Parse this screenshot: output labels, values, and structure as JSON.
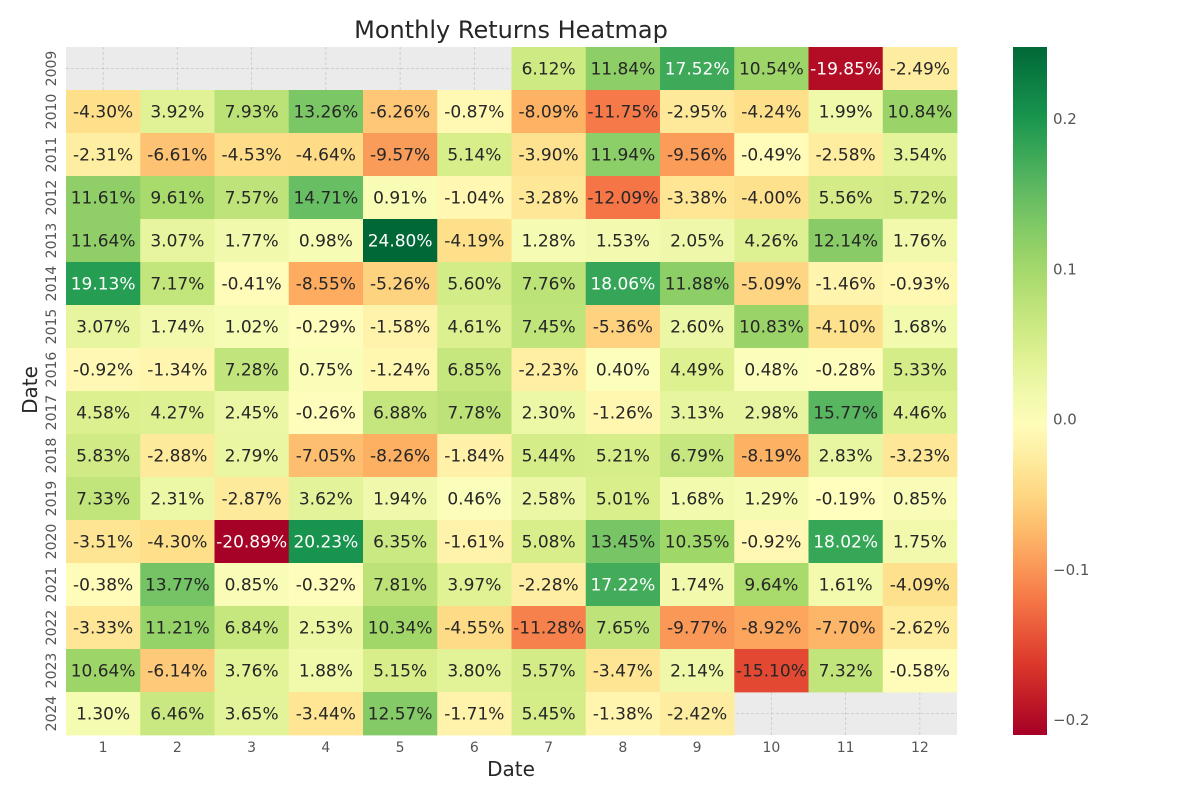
{
  "chart_data": {
    "type": "heatmap",
    "title": "Monthly Returns Heatmap",
    "xlabel": "Date",
    "ylabel": "Date",
    "x_categories": [
      "1",
      "2",
      "3",
      "4",
      "5",
      "6",
      "7",
      "8",
      "9",
      "10",
      "11",
      "12"
    ],
    "y_categories": [
      "2009",
      "2010",
      "2011",
      "2012",
      "2013",
      "2014",
      "2015",
      "2016",
      "2017",
      "2018",
      "2019",
      "2020",
      "2021",
      "2022",
      "2023",
      "2024"
    ],
    "values": [
      [
        null,
        null,
        null,
        null,
        null,
        null,
        0.0612,
        0.1184,
        0.1752,
        0.1054,
        -0.1985,
        -0.0249
      ],
      [
        -0.043,
        0.0392,
        0.0793,
        0.1326,
        -0.0626,
        -0.0087,
        -0.0809,
        -0.1175,
        -0.0295,
        -0.0424,
        0.0199,
        0.1084
      ],
      [
        -0.0231,
        -0.0661,
        -0.0453,
        -0.0464,
        -0.0957,
        0.0514,
        -0.039,
        0.1194,
        -0.0956,
        -0.0049,
        -0.0258,
        0.0354
      ],
      [
        0.1161,
        0.0961,
        0.0757,
        0.1471,
        0.0091,
        -0.0104,
        -0.0328,
        -0.1209,
        -0.0338,
        -0.04,
        0.0556,
        0.0572
      ],
      [
        0.1164,
        0.0307,
        0.0177,
        0.0098,
        0.248,
        -0.0419,
        0.0128,
        0.0153,
        0.0205,
        0.0426,
        0.1214,
        0.0176
      ],
      [
        0.1913,
        0.0717,
        -0.0041,
        -0.0855,
        -0.0526,
        0.056,
        0.0776,
        0.1806,
        0.1188,
        -0.0509,
        -0.0146,
        -0.0093
      ],
      [
        0.0307,
        0.0174,
        0.0102,
        -0.0029,
        -0.0158,
        0.0461,
        0.0745,
        -0.0536,
        0.026,
        0.1083,
        -0.041,
        0.0168
      ],
      [
        -0.0092,
        -0.0134,
        0.0728,
        0.0075,
        -0.0124,
        0.0685,
        -0.0223,
        0.004,
        0.0449,
        0.0048,
        -0.0028,
        0.0533
      ],
      [
        0.0458,
        0.0427,
        0.0245,
        -0.0026,
        0.0688,
        0.0778,
        0.023,
        -0.0126,
        0.0313,
        0.0298,
        0.1577,
        0.0446
      ],
      [
        0.0583,
        -0.0288,
        0.0279,
        -0.0705,
        -0.0826,
        -0.0184,
        0.0544,
        0.0521,
        0.0679,
        -0.0819,
        0.0283,
        -0.0323
      ],
      [
        0.0733,
        0.0231,
        -0.0287,
        0.0362,
        0.0194,
        0.0046,
        0.0258,
        0.0501,
        0.0168,
        0.0129,
        -0.0019,
        0.0085
      ],
      [
        -0.0351,
        -0.043,
        -0.2089,
        0.2023,
        0.0635,
        -0.0161,
        0.0508,
        0.1345,
        0.1035,
        -0.0092,
        0.1802,
        0.0175
      ],
      [
        -0.0038,
        0.1377,
        0.0085,
        -0.0032,
        0.0781,
        0.0397,
        -0.0228,
        0.1722,
        0.0174,
        0.0964,
        0.0161,
        -0.0409
      ],
      [
        -0.0333,
        0.1121,
        0.0684,
        0.0253,
        0.1034,
        -0.0455,
        -0.1128,
        0.0765,
        -0.0977,
        -0.0892,
        -0.077,
        -0.0262
      ],
      [
        0.1064,
        -0.0614,
        0.0376,
        0.0188,
        0.0515,
        0.038,
        0.0557,
        -0.0347,
        0.0214,
        -0.151,
        0.0732,
        -0.0058
      ],
      [
        0.013,
        0.0646,
        0.0365,
        -0.0344,
        0.1257,
        -0.0171,
        0.0545,
        -0.0138,
        -0.0242,
        null,
        null,
        null
      ]
    ],
    "labels": [
      [
        null,
        null,
        null,
        null,
        null,
        null,
        "6.12%",
        "11.84%",
        "17.52%",
        "10.54%",
        "-19.85%",
        "-2.49%"
      ],
      [
        "-4.30%",
        "3.92%",
        "7.93%",
        "13.26%",
        "-6.26%",
        "-0.87%",
        "-8.09%",
        "-11.75%",
        "-2.95%",
        "-4.24%",
        "1.99%",
        "10.84%"
      ],
      [
        "-2.31%",
        "-6.61%",
        "-4.53%",
        "-4.64%",
        "-9.57%",
        "5.14%",
        "-3.90%",
        "11.94%",
        "-9.56%",
        "-0.49%",
        "-2.58%",
        "3.54%"
      ],
      [
        "11.61%",
        "9.61%",
        "7.57%",
        "14.71%",
        "0.91%",
        "-1.04%",
        "-3.28%",
        "-12.09%",
        "-3.38%",
        "-4.00%",
        "5.56%",
        "5.72%"
      ],
      [
        "11.64%",
        "3.07%",
        "1.77%",
        "0.98%",
        "24.80%",
        "-4.19%",
        "1.28%",
        "1.53%",
        "2.05%",
        "4.26%",
        "12.14%",
        "1.76%"
      ],
      [
        "19.13%",
        "7.17%",
        "-0.41%",
        "-8.55%",
        "-5.26%",
        "5.60%",
        "7.76%",
        "18.06%",
        "11.88%",
        "-5.09%",
        "-1.46%",
        "-0.93%"
      ],
      [
        "3.07%",
        "1.74%",
        "1.02%",
        "-0.29%",
        "-1.58%",
        "4.61%",
        "7.45%",
        "-5.36%",
        "2.60%",
        "10.83%",
        "-4.10%",
        "1.68%"
      ],
      [
        "-0.92%",
        "-1.34%",
        "7.28%",
        "0.75%",
        "-1.24%",
        "6.85%",
        "-2.23%",
        "0.40%",
        "4.49%",
        "0.48%",
        "-0.28%",
        "5.33%"
      ],
      [
        "4.58%",
        "4.27%",
        "2.45%",
        "-0.26%",
        "6.88%",
        "7.78%",
        "2.30%",
        "-1.26%",
        "3.13%",
        "2.98%",
        "15.77%",
        "4.46%"
      ],
      [
        "5.83%",
        "-2.88%",
        "2.79%",
        "-7.05%",
        "-8.26%",
        "-1.84%",
        "5.44%",
        "5.21%",
        "6.79%",
        "-8.19%",
        "2.83%",
        "-3.23%"
      ],
      [
        "7.33%",
        "2.31%",
        "-2.87%",
        "3.62%",
        "1.94%",
        "0.46%",
        "2.58%",
        "5.01%",
        "1.68%",
        "1.29%",
        "-0.19%",
        "0.85%"
      ],
      [
        "-3.51%",
        "-4.30%",
        "-20.89%",
        "20.23%",
        "6.35%",
        "-1.61%",
        "5.08%",
        "13.45%",
        "10.35%",
        "-0.92%",
        "18.02%",
        "1.75%"
      ],
      [
        "-0.38%",
        "13.77%",
        "0.85%",
        "-0.32%",
        "7.81%",
        "3.97%",
        "-2.28%",
        "17.22%",
        "1.74%",
        "9.64%",
        "1.61%",
        "-4.09%"
      ],
      [
        "-3.33%",
        "11.21%",
        "6.84%",
        "2.53%",
        "10.34%",
        "-4.55%",
        "-11.28%",
        "7.65%",
        "-9.77%",
        "-8.92%",
        "-7.70%",
        "-2.62%"
      ],
      [
        "10.64%",
        "-6.14%",
        "3.76%",
        "1.88%",
        "5.15%",
        "3.80%",
        "5.57%",
        "-3.47%",
        "2.14%",
        "-15.10%",
        "7.32%",
        "-0.58%"
      ],
      [
        "1.30%",
        "6.46%",
        "3.65%",
        "-3.44%",
        "12.57%",
        "-1.71%",
        "5.45%",
        "-1.38%",
        "-2.42%",
        null,
        null,
        null
      ]
    ],
    "colorbar": {
      "vmin": -0.21,
      "vmax": 0.248,
      "center": 0.0,
      "colormap": "RdYlGn",
      "ticks": [
        0.2,
        0.1,
        0.0,
        -0.1,
        -0.2
      ],
      "tick_labels": [
        "0.2",
        "0.1",
        "0.0",
        "−0.1",
        "−0.2"
      ]
    },
    "missing_cell_color": "#ebebeb",
    "grid": true,
    "legend": "colorbar-right"
  }
}
